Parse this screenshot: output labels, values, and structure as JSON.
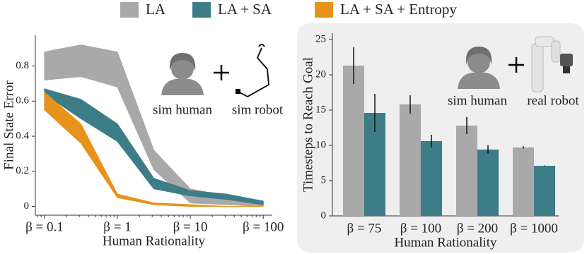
{
  "chart_data": [
    {
      "type": "area",
      "xlabel": "Human Rationality",
      "ylabel": "Final State Error",
      "x": [
        0.1,
        0.316,
        1,
        3.16,
        10,
        31.6,
        100
      ],
      "log_x": true,
      "xlim": [
        0.075,
        133
      ],
      "ylim": [
        -0.05,
        0.975
      ],
      "xticks": [
        {
          "value": 0.1,
          "label": "β = 0.1"
        },
        {
          "value": 1,
          "label": "β = 1"
        },
        {
          "value": 10,
          "label": "β = 10"
        },
        {
          "value": 100,
          "label": "β = 100"
        }
      ],
      "yticks": [
        0,
        0.2,
        0.4,
        0.6,
        0.8
      ],
      "series": [
        {
          "name": "LA",
          "color": "#a9a9a9",
          "upper": [
            0.88,
            0.92,
            0.88,
            0.32,
            0.1,
            0.06,
            0.02
          ],
          "lower": [
            0.72,
            0.74,
            0.68,
            0.21,
            0.02,
            0.01,
            0.0
          ]
        },
        {
          "name": "LA + SA",
          "color": "#3d7d88",
          "upper": [
            0.67,
            0.61,
            0.47,
            0.16,
            0.09,
            0.07,
            0.03
          ],
          "lower": [
            0.64,
            0.5,
            0.37,
            0.1,
            0.06,
            0.04,
            0.01
          ]
        },
        {
          "name": "LA + SA + Entropy",
          "color": "#e8921a",
          "upper": [
            0.65,
            0.47,
            0.07,
            0.02,
            0.01,
            0.0,
            0.0
          ],
          "lower": [
            0.55,
            0.36,
            0.05,
            0.01,
            0.0,
            0.0,
            0.0
          ]
        }
      ],
      "annotations": [
        "sim human",
        "sim robot"
      ]
    },
    {
      "type": "bar",
      "xlabel": "Human Rationality",
      "ylabel": "Timesteps to Reach Goal",
      "categories": [
        "β = 75",
        "β = 100",
        "β = 200",
        "β = 1000"
      ],
      "ylim": [
        0,
        25.9
      ],
      "yticks": [
        0,
        5,
        10,
        15,
        20,
        25
      ],
      "series": [
        {
          "name": "LA",
          "color": "#a9a9a9",
          "values": [
            21.3,
            15.8,
            12.8,
            9.7
          ],
          "errors": [
            2.6,
            1.3,
            1.2,
            0.15
          ]
        },
        {
          "name": "LA + SA",
          "color": "#3d7d88",
          "values": [
            14.6,
            10.6,
            9.4,
            7.1
          ],
          "errors": [
            2.7,
            0.9,
            0.6,
            0.05
          ]
        }
      ],
      "annotations": [
        "sim human",
        "real robot"
      ]
    }
  ]
}
